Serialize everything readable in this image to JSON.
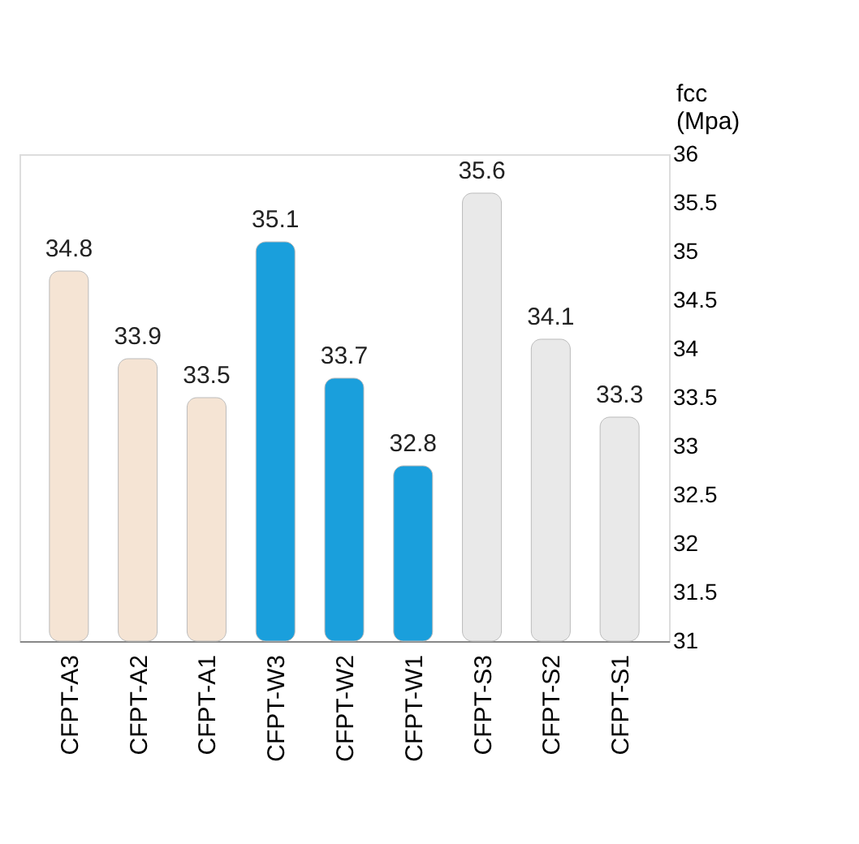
{
  "chart_data": {
    "type": "bar",
    "ylabel": "fcc (Mpa)",
    "categories": [
      "CFPT-A3",
      "CFPT-A2",
      "CFPT-A1",
      "CFPT-W3",
      "CFPT-W2",
      "CFPT-W1",
      "CFPT-S3",
      "CFPT-S2",
      "CFPT-S1"
    ],
    "values": [
      34.8,
      33.9,
      33.5,
      35.1,
      33.7,
      32.8,
      35.6,
      34.1,
      33.3
    ],
    "colors": [
      "#f5e4d4",
      "#f5e4d4",
      "#f5e4d4",
      "#1a9fdc",
      "#1a9fdc",
      "#1a9fdc",
      "#e9e9e9",
      "#e9e9e9",
      "#e9e9e9"
    ],
    "ylim": [
      31,
      36
    ],
    "yticks": [
      31,
      31.5,
      32,
      32.5,
      33,
      33.5,
      34,
      34.5,
      35,
      35.5,
      36
    ],
    "data_labels": true,
    "grid": false
  }
}
